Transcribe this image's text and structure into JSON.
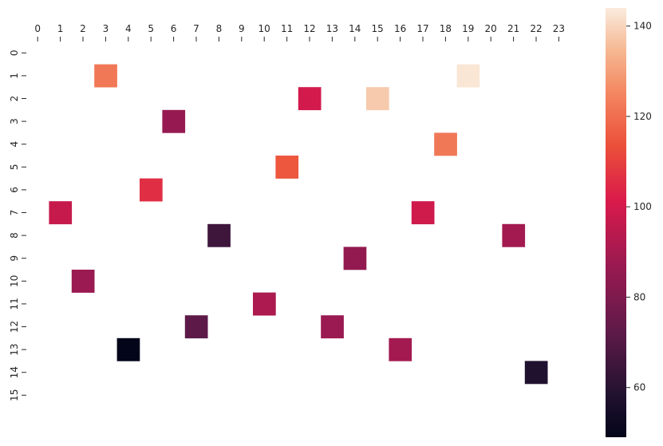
{
  "chart_data": {
    "type": "heatmap",
    "title": "",
    "xlabel": "",
    "ylabel": "",
    "x_ticks": [
      "0",
      "1",
      "2",
      "3",
      "4",
      "5",
      "6",
      "7",
      "8",
      "9",
      "10",
      "11",
      "12",
      "13",
      "14",
      "15",
      "16",
      "17",
      "18",
      "19",
      "20",
      "21",
      "22",
      "23"
    ],
    "y_ticks": [
      "0",
      "1",
      "2",
      "3",
      "4",
      "5",
      "6",
      "7",
      "8",
      "9",
      "10",
      "11",
      "12",
      "13",
      "14",
      "15"
    ],
    "x_axis_position": "top",
    "colormap": "rocket",
    "color_range": [
      49,
      144
    ],
    "colorbar_ticks": [
      60,
      80,
      100,
      120,
      140
    ],
    "colorbar_placement": "right",
    "missing_cells": "blank",
    "cells": [
      {
        "x": 3,
        "y": 1,
        "value": 122
      },
      {
        "x": 19,
        "y": 1,
        "value": 143
      },
      {
        "x": 12,
        "y": 2,
        "value": 100
      },
      {
        "x": 15,
        "y": 2,
        "value": 138
      },
      {
        "x": 6,
        "y": 3,
        "value": 86
      },
      {
        "x": 18,
        "y": 4,
        "value": 122
      },
      {
        "x": 11,
        "y": 5,
        "value": 115
      },
      {
        "x": 5,
        "y": 6,
        "value": 106
      },
      {
        "x": 1,
        "y": 7,
        "value": 97
      },
      {
        "x": 17,
        "y": 7,
        "value": 99
      },
      {
        "x": 8,
        "y": 8,
        "value": 65
      },
      {
        "x": 21,
        "y": 8,
        "value": 89
      },
      {
        "x": 14,
        "y": 9,
        "value": 85
      },
      {
        "x": 2,
        "y": 10,
        "value": 87
      },
      {
        "x": 10,
        "y": 11,
        "value": 91
      },
      {
        "x": 7,
        "y": 12,
        "value": 72
      },
      {
        "x": 13,
        "y": 12,
        "value": 87
      },
      {
        "x": 4,
        "y": 13,
        "value": 49
      },
      {
        "x": 16,
        "y": 13,
        "value": 89
      },
      {
        "x": 22,
        "y": 14,
        "value": 58
      }
    ]
  }
}
